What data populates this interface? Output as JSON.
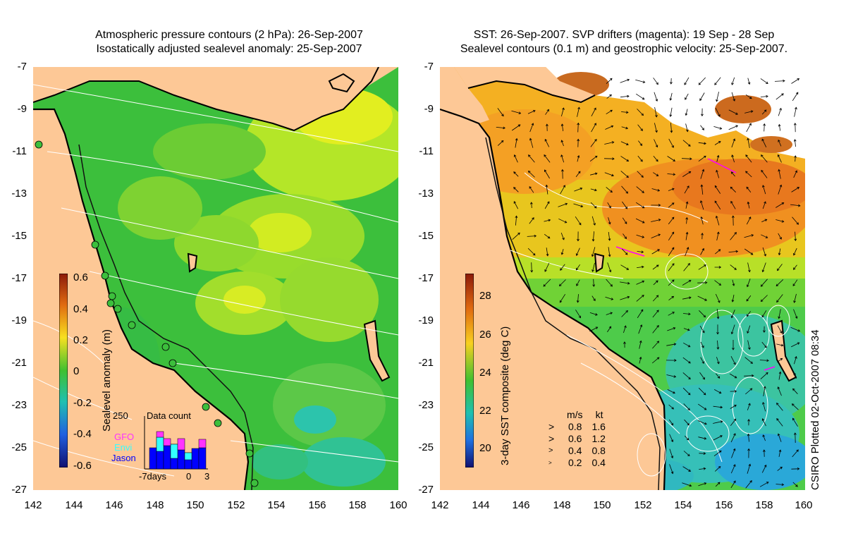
{
  "left": {
    "title_line1": "Atmospheric pressure contours (2 hPa): 26-Sep-2007",
    "title_line2": "Isostatically adjusted sealevel anomaly: 25-Sep-2007",
    "colorbar_title": "Sealevel anomaly (m)",
    "colorbar_ticks": [
      "0.6",
      "0.4",
      "0.2",
      "0",
      "-0.2",
      "-0.4",
      "-0.6"
    ],
    "data_count": {
      "title": "Data count",
      "max": "250",
      "legend": [
        "GFO",
        "Envi",
        "Jason"
      ],
      "legend_colors": [
        "#ff33ff",
        "#33ffff",
        "#0000ff"
      ],
      "axis_labels": [
        "-7days",
        "0",
        "3"
      ]
    }
  },
  "right": {
    "title_line1": "SST: 26-Sep-2007. SVP drifters (magenta): 19 Sep - 28 Sep",
    "title_line2": "Sealevel contours (0.1 m) and geostrophic velocity: 25-Sep-2007.",
    "colorbar_title": "3-day SST composite (deg C)",
    "colorbar_ticks": [
      "28",
      "26",
      "24",
      "22",
      "20"
    ],
    "velocity_legend": {
      "header_ms": "m/s",
      "header_kt": "kt",
      "rows": [
        {
          "ms": "0.8",
          "kt": "1.6"
        },
        {
          "ms": "0.6",
          "kt": "1.2"
        },
        {
          "ms": "0.4",
          "kt": "0.8"
        },
        {
          "ms": "0.2",
          "kt": "0.4"
        }
      ]
    },
    "credit": "CSIRO Plotted 02-Oct-2007 08:34"
  },
  "axes": {
    "y_ticks": [
      "-7",
      "-9",
      "-11",
      "-13",
      "-15",
      "-17",
      "-19",
      "-21",
      "-23",
      "-25",
      "-27"
    ],
    "x_ticks": [
      "142",
      "144",
      "146",
      "148",
      "150",
      "152",
      "154",
      "156",
      "158",
      "160"
    ]
  },
  "colors": {
    "land": "#fdc896",
    "sla_green": "#43c83a",
    "sla_yellow": "#c8ee23",
    "sst_orange": "#f0a020",
    "sst_green": "#4ecb4a",
    "sst_cyan": "#38c8b0"
  }
}
